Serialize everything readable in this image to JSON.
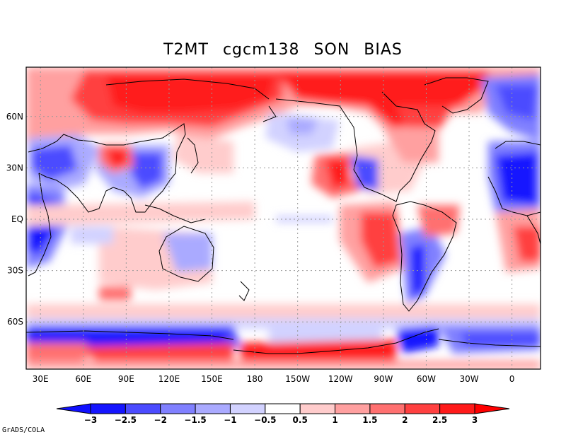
{
  "title": {
    "variable": "T2MT",
    "model": "cgcm138",
    "season": "SON",
    "type": "BIAS"
  },
  "axes": {
    "lat_labels": [
      "60N",
      "30N",
      "EQ",
      "30S",
      "60S"
    ],
    "lon_labels": [
      "30E",
      "60E",
      "90E",
      "120E",
      "150E",
      "180",
      "150W",
      "120W",
      "90W",
      "60W",
      "30W",
      "0"
    ]
  },
  "colorbar": {
    "labels": [
      "-3",
      "-2.5",
      "-2",
      "-1.5",
      "-1",
      "-0.5",
      "0.5",
      "1",
      "1.5",
      "2",
      "2.5",
      "3"
    ],
    "colors": [
      "#1515ff",
      "#4b4bff",
      "#8080ff",
      "#aaaaff",
      "#d2d2ff",
      "#ffffff",
      "#ffcccc",
      "#ffa0a0",
      "#ff7070",
      "#ff4040",
      "#ff1a1a"
    ],
    "low_arrow": "#1010ff",
    "high_arrow": "#ff0000"
  },
  "credit": "GrADS/COLA"
}
